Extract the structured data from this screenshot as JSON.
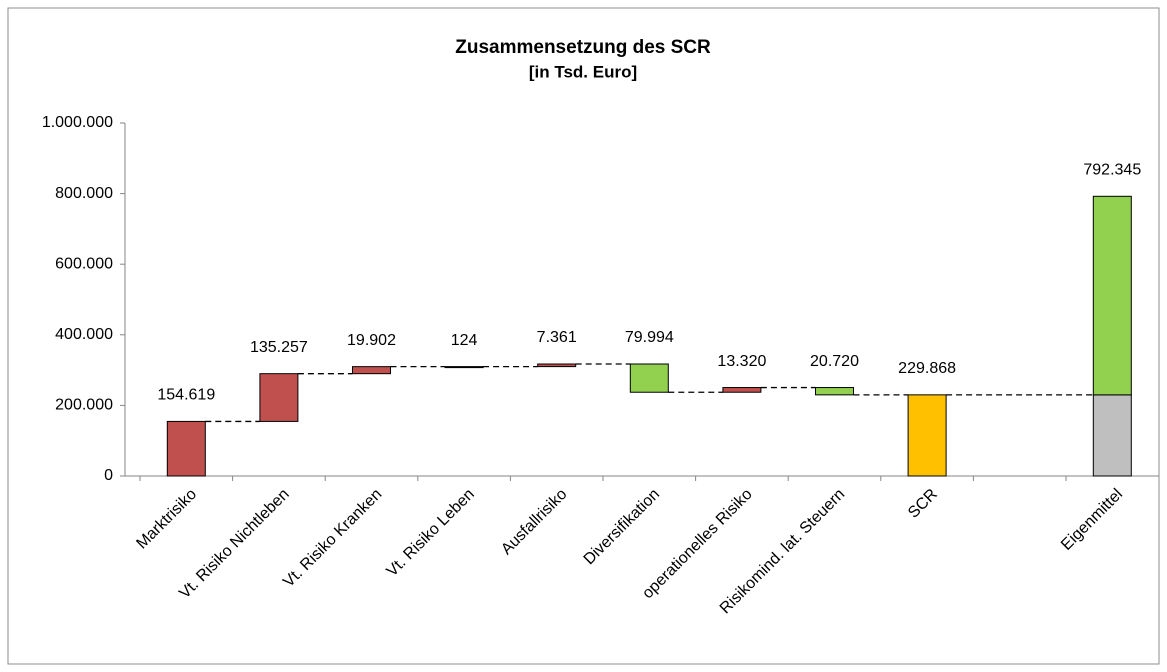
{
  "chart_data": {
    "type": "waterfall",
    "title": "Zusammensetzung des SCR",
    "subtitle": "[in Tsd. Euro]",
    "categories": [
      "Marktrisiko",
      "Vt. Risiko Nichtleben",
      "Vt. Risiko Kranken",
      "Vt. Risiko Leben",
      "Ausfallrisiko",
      "Diversifikation",
      "operationelles Risiko",
      "Risikomind. lat. Steuern",
      "SCR",
      null,
      "Eigenmittel"
    ],
    "values": [
      154619,
      135257,
      19902,
      124,
      7361,
      -79994,
      13320,
      -20720,
      229868,
      null,
      792345
    ],
    "value_labels": [
      "154.619",
      "135.257",
      "19.902",
      "124",
      "7.361",
      "79.994",
      "13.320",
      "20.720",
      "229.868",
      null,
      "792.345"
    ],
    "measure": [
      "relative",
      "relative",
      "relative",
      "relative",
      "relative",
      "relative",
      "relative",
      "relative",
      "total",
      null,
      "total"
    ],
    "colors": [
      "#c0504d",
      "#c0504d",
      "#c0504d",
      "#c0504d",
      "#c0504d",
      "#92d050",
      "#c0504d",
      "#92d050",
      "#ffc000",
      null,
      "#92d050"
    ],
    "cover_color": "#bfbfbf",
    "ylim": [
      0,
      1000000
    ],
    "yticks": [
      0,
      {
        "value": 200000,
        "label": "200.000"
      },
      {
        "value": 400000,
        "label": "400.000"
      },
      {
        "value": 600000,
        "label": "600.000"
      },
      {
        "value": 800000,
        "label": "800.000"
      },
      {
        "value": 1000000,
        "label": "1.000.000"
      }
    ],
    "grid": false
  }
}
